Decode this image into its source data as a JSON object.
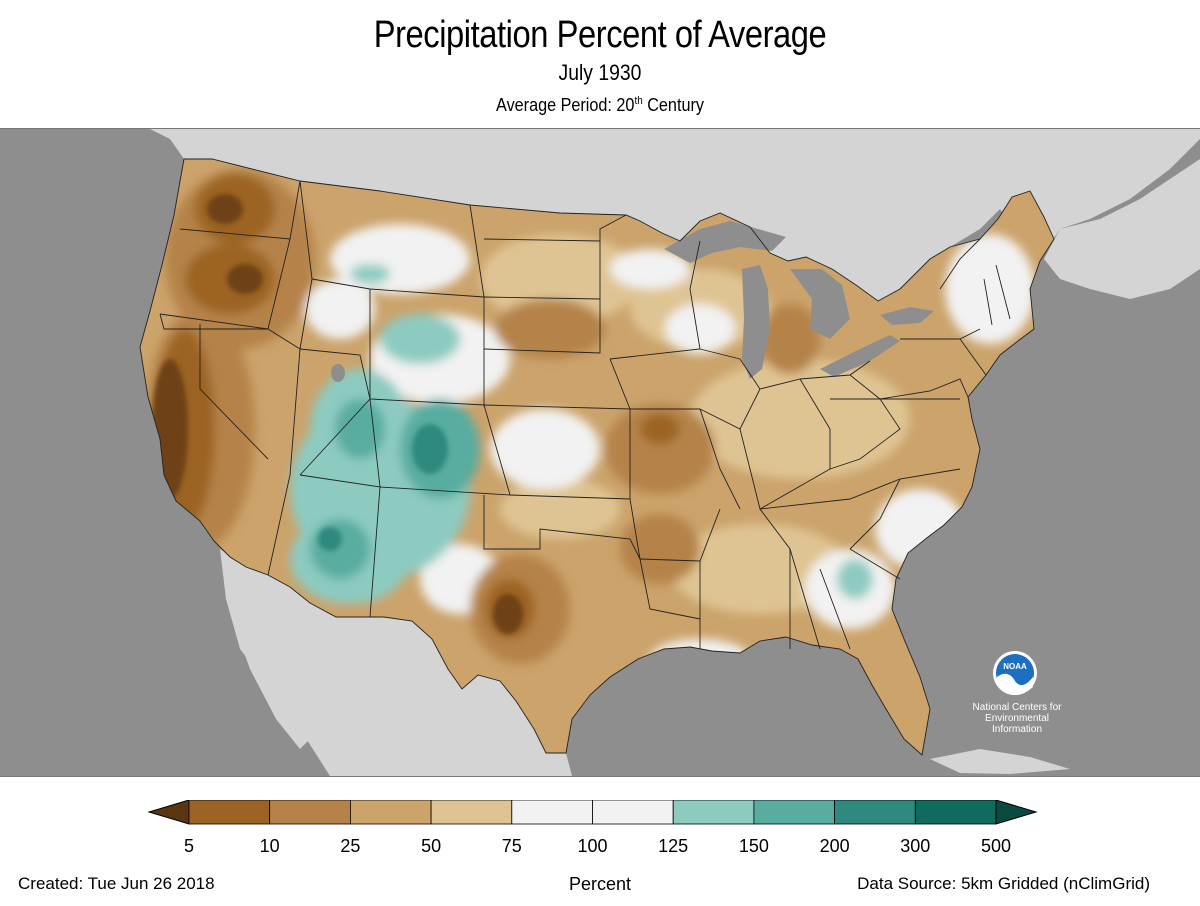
{
  "header": {
    "title": "Precipitation Percent of Average",
    "subtitle": "July 1930",
    "period_prefix": "Average Period: 20",
    "period_sup": "th",
    "period_suffix": " Century"
  },
  "legend": {
    "bins": [
      {
        "from": "5",
        "to": "10",
        "color": "#9c6324"
      },
      {
        "from": "10",
        "to": "25",
        "color": "#b5834a"
      },
      {
        "from": "25",
        "to": "50",
        "color": "#cba36b"
      },
      {
        "from": "50",
        "to": "75",
        "color": "#dfc493"
      },
      {
        "from": "75",
        "to": "100",
        "color": "#f2f2f2"
      },
      {
        "from": "100",
        "to": "125",
        "color": "#f2f2f2"
      },
      {
        "from": "125",
        "to": "150",
        "color": "#8dcbc1"
      },
      {
        "from": "150",
        "to": "200",
        "color": "#58aca0"
      },
      {
        "from": "200",
        "to": "300",
        "color": "#2e8a7e"
      },
      {
        "from": "300",
        "to": "500",
        "color": "#0f6b5e"
      }
    ],
    "ticks": [
      "5",
      "10",
      "25",
      "50",
      "75",
      "100",
      "125",
      "150",
      "200",
      "300",
      "500"
    ],
    "below_color": "#5a3510",
    "above_color": "#0a4a41",
    "unit_label": "Percent"
  },
  "map": {
    "ocean_color": "#8e8e8e",
    "land_outside_color": "#d4d4d4",
    "lakes_color": "#8e8e8e",
    "logo": {
      "name": "NOAA",
      "caption_lines": [
        "National Centers for",
        "Environmental",
        "Information"
      ]
    }
  },
  "footer": {
    "created": "Created: Tue Jun 26 2018",
    "source": "Data Source: 5km Gridded (nClimGrid)"
  }
}
